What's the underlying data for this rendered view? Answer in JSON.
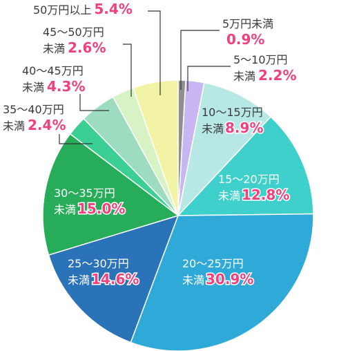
{
  "chart_data": {
    "type": "pie",
    "title": "",
    "slices": [
      {
        "name": "5万円未満",
        "value": 0.9,
        "value_label": "0.9%",
        "label_lines": [
          "5万円未満"
        ],
        "color": "#8f8f8f",
        "label_inside": false
      },
      {
        "name": "5〜10万円未満",
        "value": 2.2,
        "value_label": "2.2%",
        "label_lines": [
          "5〜10万円",
          "未満"
        ],
        "color": "#c7b6f2",
        "label_inside": false
      },
      {
        "name": "10〜15万円未満",
        "value": 8.9,
        "value_label": "8.9%",
        "label_lines": [
          "10〜15万円",
          "未満"
        ],
        "color": "#b8e8e6",
        "label_inside": true,
        "dark_text": true
      },
      {
        "name": "15〜20万円未満",
        "value": 12.8,
        "value_label": "12.8%",
        "label_lines": [
          "15〜20万円",
          "未満"
        ],
        "color": "#3fd0cb",
        "label_inside": true
      },
      {
        "name": "20〜25万円未満",
        "value": 30.9,
        "value_label": "30.9%",
        "label_lines": [
          "20〜25万円",
          "未満"
        ],
        "color": "#2fa9d8",
        "label_inside": true
      },
      {
        "name": "25〜30万円未満",
        "value": 14.6,
        "value_label": "14.6%",
        "label_lines": [
          "25〜30万円",
          "未満"
        ],
        "color": "#2b73b8",
        "label_inside": true
      },
      {
        "name": "30〜35万円未満",
        "value": 15.0,
        "value_label": "15.0%",
        "label_lines": [
          "30〜35万円",
          "未満"
        ],
        "color": "#27ad5a",
        "label_inside": true
      },
      {
        "name": "35〜40万円未満",
        "value": 2.4,
        "value_label": "2.4%",
        "label_lines": [
          "35〜40万円",
          "未満"
        ],
        "color": "#3ccf93",
        "label_inside": false
      },
      {
        "name": "40〜45万円未満",
        "value": 4.3,
        "value_label": "4.3%",
        "label_lines": [
          "40〜45万円",
          "未満"
        ],
        "color": "#9edcbf",
        "label_inside": false
      },
      {
        "name": "45〜50万円未満",
        "value": 2.6,
        "value_label": "2.6%",
        "label_lines": [
          "45〜50万円",
          "未満"
        ],
        "color": "#d7f2c5",
        "label_inside": false
      },
      {
        "name": "50万円以上",
        "value": 5.4,
        "value_label": "5.4%",
        "label_lines": [
          "50万円以上"
        ],
        "color": "#f3f3a6",
        "label_inside": false
      }
    ],
    "start": "12 o'clock",
    "direction": "clockwise",
    "legend": "none (labels on and around slices)",
    "label_value_color": "#f0407e"
  }
}
